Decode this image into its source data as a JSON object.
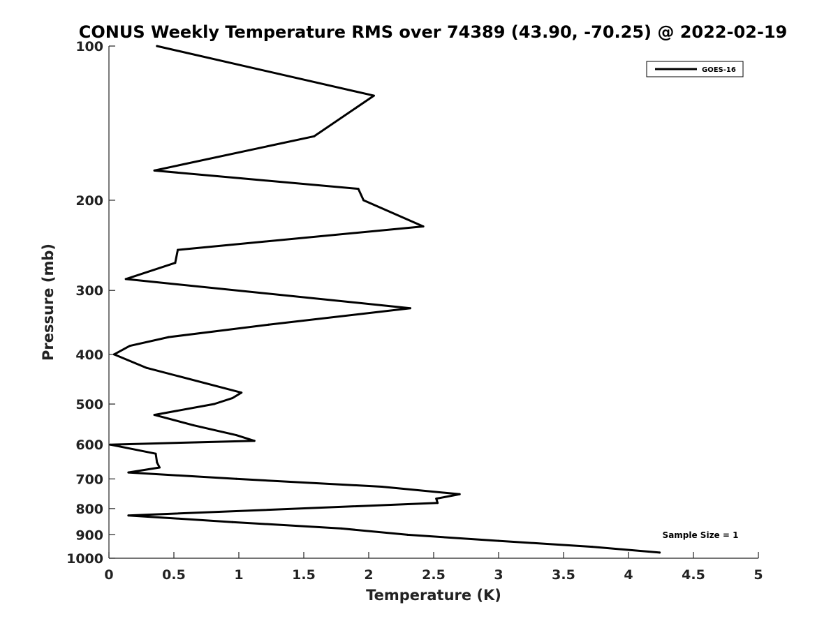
{
  "chart_data": {
    "type": "line",
    "title": "CONUS Weekly Temperature RMS over 74389 (43.90, -70.25) @ 2022-02-19",
    "xlabel": "Temperature (K)",
    "ylabel": "Pressure (mb)",
    "xlim": [
      0,
      5
    ],
    "ylim": [
      100,
      1000
    ],
    "y_scale": "log",
    "y_reversed": true,
    "x_ticks": [
      0,
      0.5,
      1,
      1.5,
      2,
      2.5,
      3,
      3.5,
      4,
      4.5,
      5
    ],
    "x_tick_labels": [
      "0",
      "0.5",
      "1",
      "1.5",
      "2",
      "2.5",
      "3",
      "3.5",
      "4",
      "4.5",
      "5"
    ],
    "y_ticks": [
      100,
      200,
      300,
      400,
      500,
      600,
      700,
      800,
      900,
      1000
    ],
    "y_tick_labels": [
      "100",
      "200",
      "300",
      "400",
      "500",
      "600",
      "700",
      "800",
      "900",
      "1000"
    ],
    "grid": false,
    "legend_position": "top-right",
    "series": [
      {
        "name": "GOES-16",
        "color": "#000000",
        "points": [
          {
            "x": 0.37,
            "y": 100
          },
          {
            "x": 2.04,
            "y": 125
          },
          {
            "x": 1.58,
            "y": 150
          },
          {
            "x": 0.35,
            "y": 175
          },
          {
            "x": 1.92,
            "y": 190
          },
          {
            "x": 1.96,
            "y": 200
          },
          {
            "x": 2.42,
            "y": 225
          },
          {
            "x": 0.53,
            "y": 250
          },
          {
            "x": 0.51,
            "y": 265
          },
          {
            "x": 0.13,
            "y": 285
          },
          {
            "x": 2.32,
            "y": 325
          },
          {
            "x": 1.23,
            "y": 350
          },
          {
            "x": 0.46,
            "y": 370
          },
          {
            "x": 0.16,
            "y": 385
          },
          {
            "x": 0.04,
            "y": 400
          },
          {
            "x": 0.29,
            "y": 425
          },
          {
            "x": 1.02,
            "y": 475
          },
          {
            "x": 0.95,
            "y": 487
          },
          {
            "x": 0.81,
            "y": 500
          },
          {
            "x": 0.35,
            "y": 525
          },
          {
            "x": 0.65,
            "y": 550
          },
          {
            "x": 0.98,
            "y": 575
          },
          {
            "x": 1.12,
            "y": 590
          },
          {
            "x": 0.01,
            "y": 600
          },
          {
            "x": 0.36,
            "y": 625
          },
          {
            "x": 0.37,
            "y": 650
          },
          {
            "x": 0.39,
            "y": 665
          },
          {
            "x": 0.15,
            "y": 680
          },
          {
            "x": 0.98,
            "y": 700
          },
          {
            "x": 2.1,
            "y": 725
          },
          {
            "x": 2.7,
            "y": 750
          },
          {
            "x": 2.52,
            "y": 765
          },
          {
            "x": 2.53,
            "y": 780
          },
          {
            "x": 0.15,
            "y": 825
          },
          {
            "x": 0.95,
            "y": 850
          },
          {
            "x": 1.79,
            "y": 875
          },
          {
            "x": 2.3,
            "y": 900
          },
          {
            "x": 3.0,
            "y": 925
          },
          {
            "x": 3.72,
            "y": 950
          },
          {
            "x": 4.24,
            "y": 975
          }
        ]
      }
    ],
    "annotations": [
      "Sample Size = 1"
    ]
  }
}
